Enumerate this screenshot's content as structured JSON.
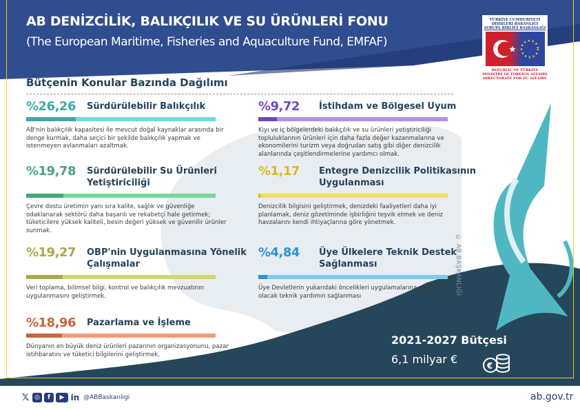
{
  "header": {
    "title": "AB DENİZCİLİK, BALIKÇILIK VE SU ÜRÜNLERİ FONU",
    "subtitle": "(The European Maritime, Fisheries and Aquaculture Fund, EMFAF)"
  },
  "logo": {
    "tr_lines": [
      "TÜRKİYE CUMHURİYETİ",
      "DIŞİŞLERİ BAKANLIĞI",
      "AVRUPA BİRLİĞİ BAŞKANLIĞI"
    ],
    "en_lines": [
      "REPUBLIC OF TÜRKİYE",
      "MINISTRY OF FOREIGN AFFAIRS",
      "DIRECTORATE FOR EU AFFAIRS"
    ]
  },
  "section_title": "Bütçenin Konular Bazında Dağılımı",
  "items": [
    {
      "percent_label": "%26,26",
      "percent": 26.26,
      "title": "Sürdürülebilir Balıkçılık",
      "desc": "AB'nin balıkçılık kapasitesi ile mevcut doğal kaynaklar arasında bir denge kurmak, daha seçici bir şekilde balıkçılık yapmak ve istenmeyen avlanmaları azaltmak.",
      "color_dark": "#3fa9a5",
      "color_light": "#6fdcdc"
    },
    {
      "percent_label": "%19,78",
      "percent": 19.78,
      "title": "Sürdürülebilir Su Ürünleri Yetiştiriciliği",
      "desc": "Çevre dostu üretimin yanı sıra kalite, sağlık ve güvenliğe odaklanarak sektörü daha başarılı ve rekabetçi hale getirmek; tüketicilere yüksek kaliteli, besin değeri yüksek ve güvenilir ürünler sunmak.",
      "color_dark": "#44a879",
      "color_light": "#76d89c"
    },
    {
      "percent_label": "%19,27",
      "percent": 19.27,
      "title": "OBP'nin Uygulanmasına Yönelik Çalışmalar",
      "desc": "Veri toplama, bilimsel bilgi, kontrol ve balıkçılık mevzuatının uygulanmasını geliştirmek.",
      "color_dark": "#a7a84a",
      "color_light": "#d0d672"
    },
    {
      "percent_label": "%18,96",
      "percent": 18.96,
      "title": "Pazarlama ve İşleme",
      "desc": "Dünyanın en büyük deniz ürünleri pazarının organizasyonunu, pazar istihbaratını ve tüketici bilgilerini geliştirmek.",
      "color_dark": "#cc6339",
      "color_light": "#f59a74"
    },
    {
      "percent_label": "%9,72",
      "percent": 9.72,
      "title": "İstihdam ve Bölgesel Uyum",
      "desc": "Kıyı ve iç bölgelerdeki balıkçılık ve su ürünleri yetiştiriciliği topluluklarının ürünleri için daha fazla değer kazanmalarına ve ekonomilerini turizm veya doğrudan satış gibi diğer denizcilik alanlarında çeşitlendirmelerine yardımcı olmak.",
      "color_dark": "#7444c2",
      "color_light": "#b78ee9"
    },
    {
      "percent_label": "%1,17",
      "percent": 1.17,
      "title": "Entegre Denizcilik Politikasının Uygulanması",
      "desc": "Denizcilik bilgisini geliştirmek, denizdeki faaliyetleri daha iyi planlamak, deniz gözetiminde işbirliğini teşvik etmek ve deniz havzalarını kendi ihtiyaçlarına göre yönetmek.",
      "color_dark": "#d9b920",
      "color_light": "#f2dc5c"
    },
    {
      "percent_label": "%4,84",
      "percent": 4.84,
      "title": "Üye Ülkelere Teknik Destek Sağlanması",
      "desc": "Üye Devletlerin yukarıdaki öncelikleri uygulamalarına yardımcı olacak teknik yardımın sağlanması",
      "color_dark": "#2a95d2",
      "color_light": "#7ccbef"
    }
  ],
  "copyright": "© AB BAŞKANLIĞI",
  "budget": {
    "title": "2021-2027 Bütçesi",
    "value": "6,1 milyar €"
  },
  "footer": {
    "icons": [
      "x-icon",
      "instagram-icon",
      "facebook-icon",
      "youtube-icon",
      "linkedin-icon"
    ],
    "handle": "@ABBaskanligi",
    "site": "ab.gov.tr"
  },
  "colors": {
    "header_navy": "#2f4d8f",
    "dark_teal": "#26475a",
    "title_navy": "#24435a"
  }
}
